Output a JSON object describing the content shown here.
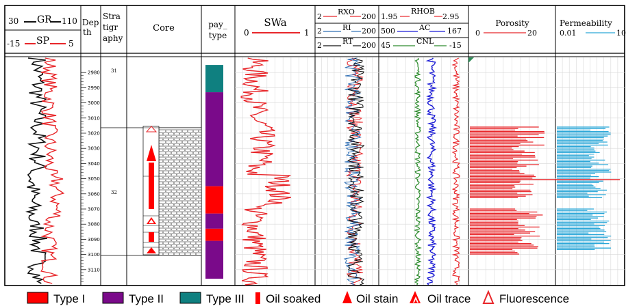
{
  "header": {
    "gr_label": "GR",
    "gr_min": "30",
    "gr_max": "110",
    "sp_label": "SP",
    "sp_min": "-15",
    "sp_max": "5",
    "depth_label_1": "Dep",
    "depth_label_2": "th",
    "strat_label_1": "Stra",
    "strat_label_2": "tigr",
    "strat_label_3": "aphy",
    "core_label": "Core",
    "pay_label_1": "pay_",
    "pay_label_2": "type",
    "swa_label": "SWa",
    "swa_min": "0",
    "swa_max": "1",
    "rxo_label": "RXO",
    "rxo_min": "2",
    "rxo_max": "200",
    "ri_label": "RI",
    "ri_min": "2",
    "ri_max": "200",
    "rt_label": "RT",
    "rt_min": "2",
    "rt_max": "200",
    "rhob_label": "RHOB",
    "rhob_min": "1.95",
    "rhob_max": "2.95",
    "ac_label": "AC",
    "ac_min": "500",
    "ac_max": "167",
    "cnl_label": "CNL",
    "cnl_min": "45",
    "cnl_max": "-15",
    "por_label": "Porosity",
    "por_min": "0",
    "por_max": "20",
    "perm_label": "Permeability",
    "perm_min": "0.01",
    "perm_max": "10"
  },
  "depth_ticks": [
    "2980",
    "2990",
    "3000",
    "3010",
    "3020",
    "3030",
    "3040",
    "3050",
    "3060",
    "3070",
    "3080",
    "3090",
    "3100",
    "3110"
  ],
  "strat_units": [
    "31",
    "32"
  ],
  "colors": {
    "gr": "#111111",
    "sp": "#e8262a",
    "swa": "#e8262a",
    "rxo": "#e8262a",
    "ri": "#2f6fb5",
    "rt": "#111111",
    "rhob": "#e8262a",
    "ac": "#1a1ad6",
    "cnl": "#2e8b2e",
    "porosity": "#e8262a",
    "permeability": "#2ba7d8",
    "type_i": "#ff0000",
    "type_ii": "#7a0a8a",
    "type_iii": "#0f8080"
  },
  "pay_type_intervals": [
    {
      "type": "III",
      "top": 2975,
      "base": 2993
    },
    {
      "type": "II",
      "top": 2993,
      "base": 3055
    },
    {
      "type": "I",
      "top": 3055,
      "base": 3073
    },
    {
      "type": "II",
      "top": 3073,
      "base": 3083
    },
    {
      "type": "I",
      "top": 3083,
      "base": 3091
    },
    {
      "type": "II",
      "top": 3091,
      "base": 3116
    }
  ],
  "legend": {
    "type_i": "Type I",
    "type_ii": "Type II",
    "type_iii": "Type III",
    "oil_soaked": "Oil soaked",
    "oil_stain": "Oil stain",
    "oil_trace": "Oil trace",
    "fluorescence": "Fluorescence"
  }
}
